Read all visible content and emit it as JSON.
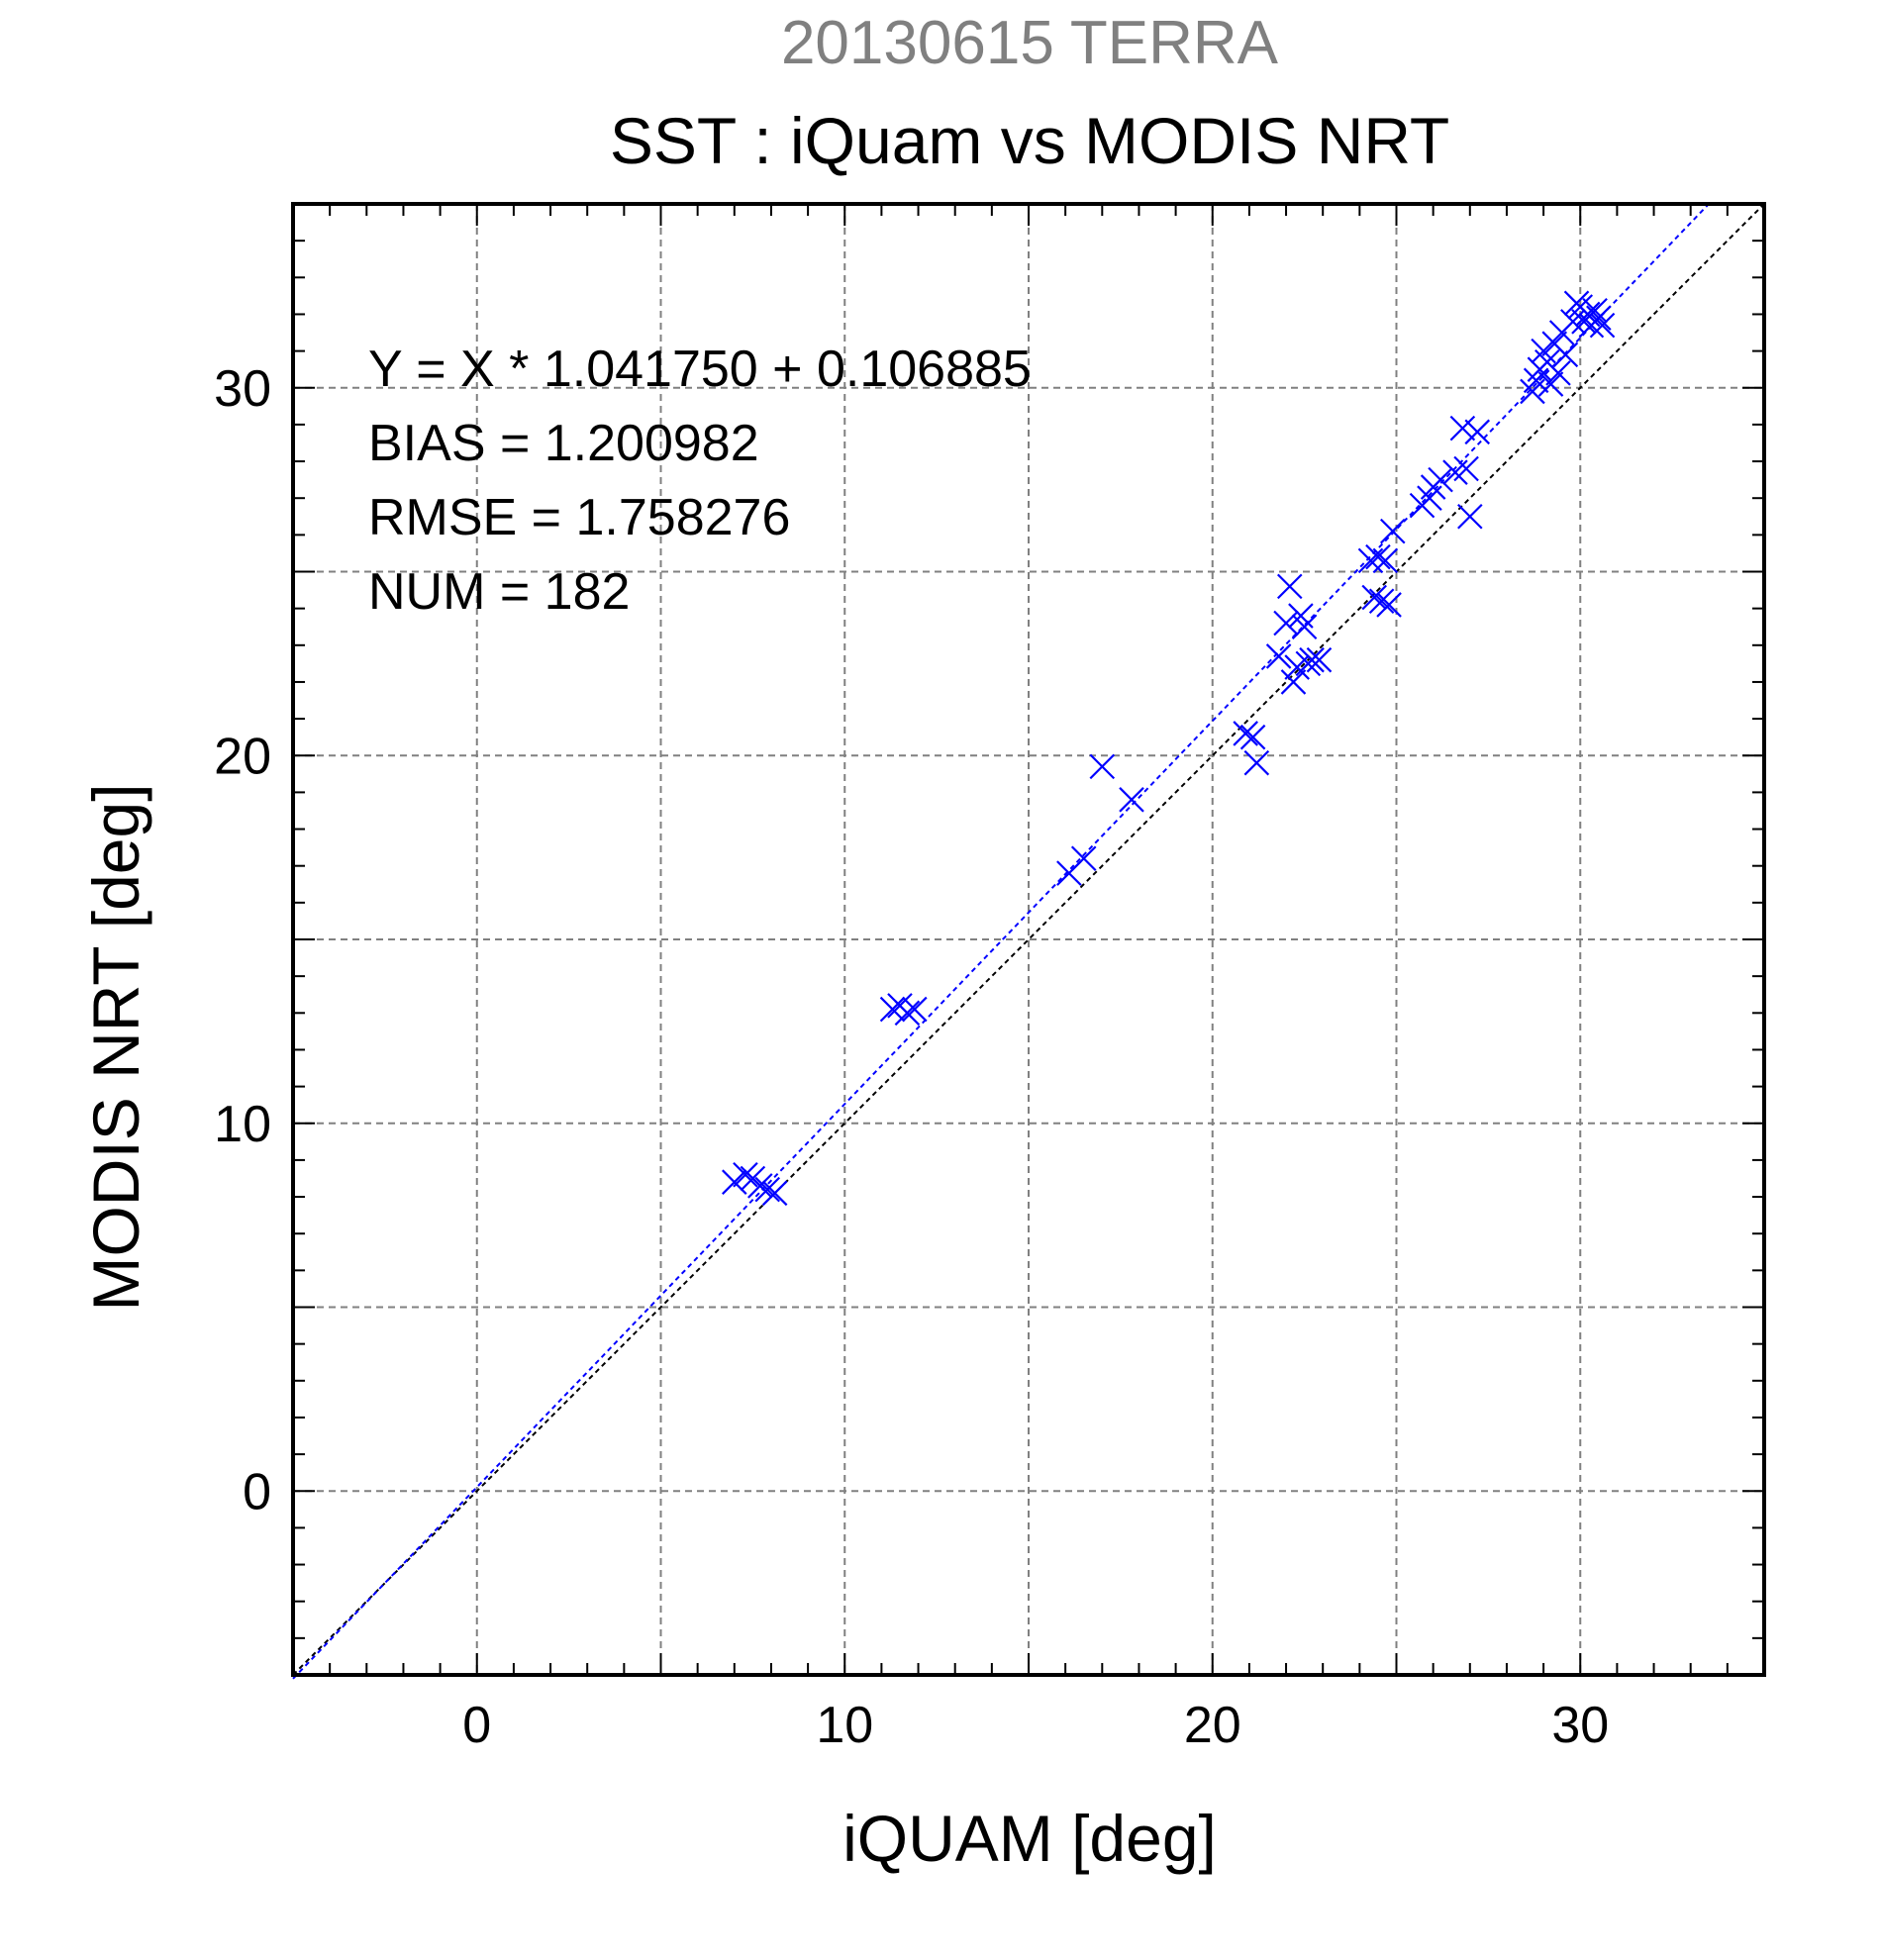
{
  "chart_data": {
    "type": "scatter",
    "supertitle": "20130615 TERRA",
    "title": "SST : iQuam vs MODIS NRT",
    "xlabel": "iQUAM [deg]",
    "ylabel": "MODIS NRT [deg]",
    "xlim": [
      -5,
      35
    ],
    "ylim": [
      -5,
      35
    ],
    "xticks": [
      0,
      10,
      20,
      30
    ],
    "yticks": [
      0,
      10,
      20,
      30
    ],
    "xtick_labels": [
      "0",
      "10",
      "20",
      "30"
    ],
    "ytick_labels": [
      "0",
      "10",
      "20",
      "30"
    ],
    "grid": true,
    "grid_step": 5,
    "minor_tick_step": 1,
    "stats": [
      "Y = X * 1.041750 + 0.106885",
      "BIAS = 1.200982",
      "RMSE = 1.758276",
      "NUM = 182"
    ],
    "fit": {
      "slope": 1.04175,
      "intercept": 0.106885
    },
    "colors": {
      "supertitle": "#808080",
      "points": "#0000ff",
      "fit_line": "#0000ff",
      "identity_line": "#000000",
      "grid": "#808080",
      "frame": "#000000"
    },
    "series": [
      {
        "marker": "x",
        "x": [
          7.0,
          7.3,
          7.5,
          7.7,
          7.9,
          8.1,
          11.3,
          11.5,
          11.7,
          11.9,
          16.1,
          16.5,
          17.0,
          17.8,
          20.9,
          21.1,
          21.2,
          21.8,
          22.0,
          22.1,
          22.2,
          22.3,
          22.4,
          22.5,
          22.6,
          22.7,
          22.9,
          24.3,
          24.4,
          24.5,
          24.6,
          24.7,
          24.8,
          24.9,
          25.7,
          25.9,
          26.0,
          26.2,
          26.6,
          26.8,
          26.9,
          27.0,
          27.2,
          28.7,
          28.8,
          28.9,
          29.0,
          29.1,
          29.2,
          29.3,
          29.4,
          29.5,
          29.6,
          29.8,
          29.9,
          30.0,
          30.1,
          30.2,
          30.3,
          30.4,
          30.5,
          30.6
        ],
        "y": [
          8.4,
          8.6,
          8.5,
          8.3,
          8.2,
          8.1,
          13.1,
          13.2,
          13.0,
          13.1,
          16.8,
          17.2,
          19.7,
          18.8,
          20.6,
          20.5,
          19.8,
          22.7,
          23.6,
          24.6,
          22.0,
          22.4,
          23.8,
          23.5,
          22.5,
          22.6,
          22.6,
          25.3,
          24.3,
          25.4,
          24.2,
          25.3,
          24.1,
          26.1,
          26.8,
          27.0,
          27.3,
          27.5,
          27.7,
          28.9,
          27.8,
          26.5,
          28.8,
          29.9,
          30.2,
          30.5,
          31.0,
          30.7,
          30.1,
          31.2,
          30.4,
          31.5,
          30.9,
          31.8,
          32.3,
          32.2,
          31.8,
          32.0,
          31.7,
          32.1,
          31.9,
          31.7
        ]
      }
    ]
  }
}
